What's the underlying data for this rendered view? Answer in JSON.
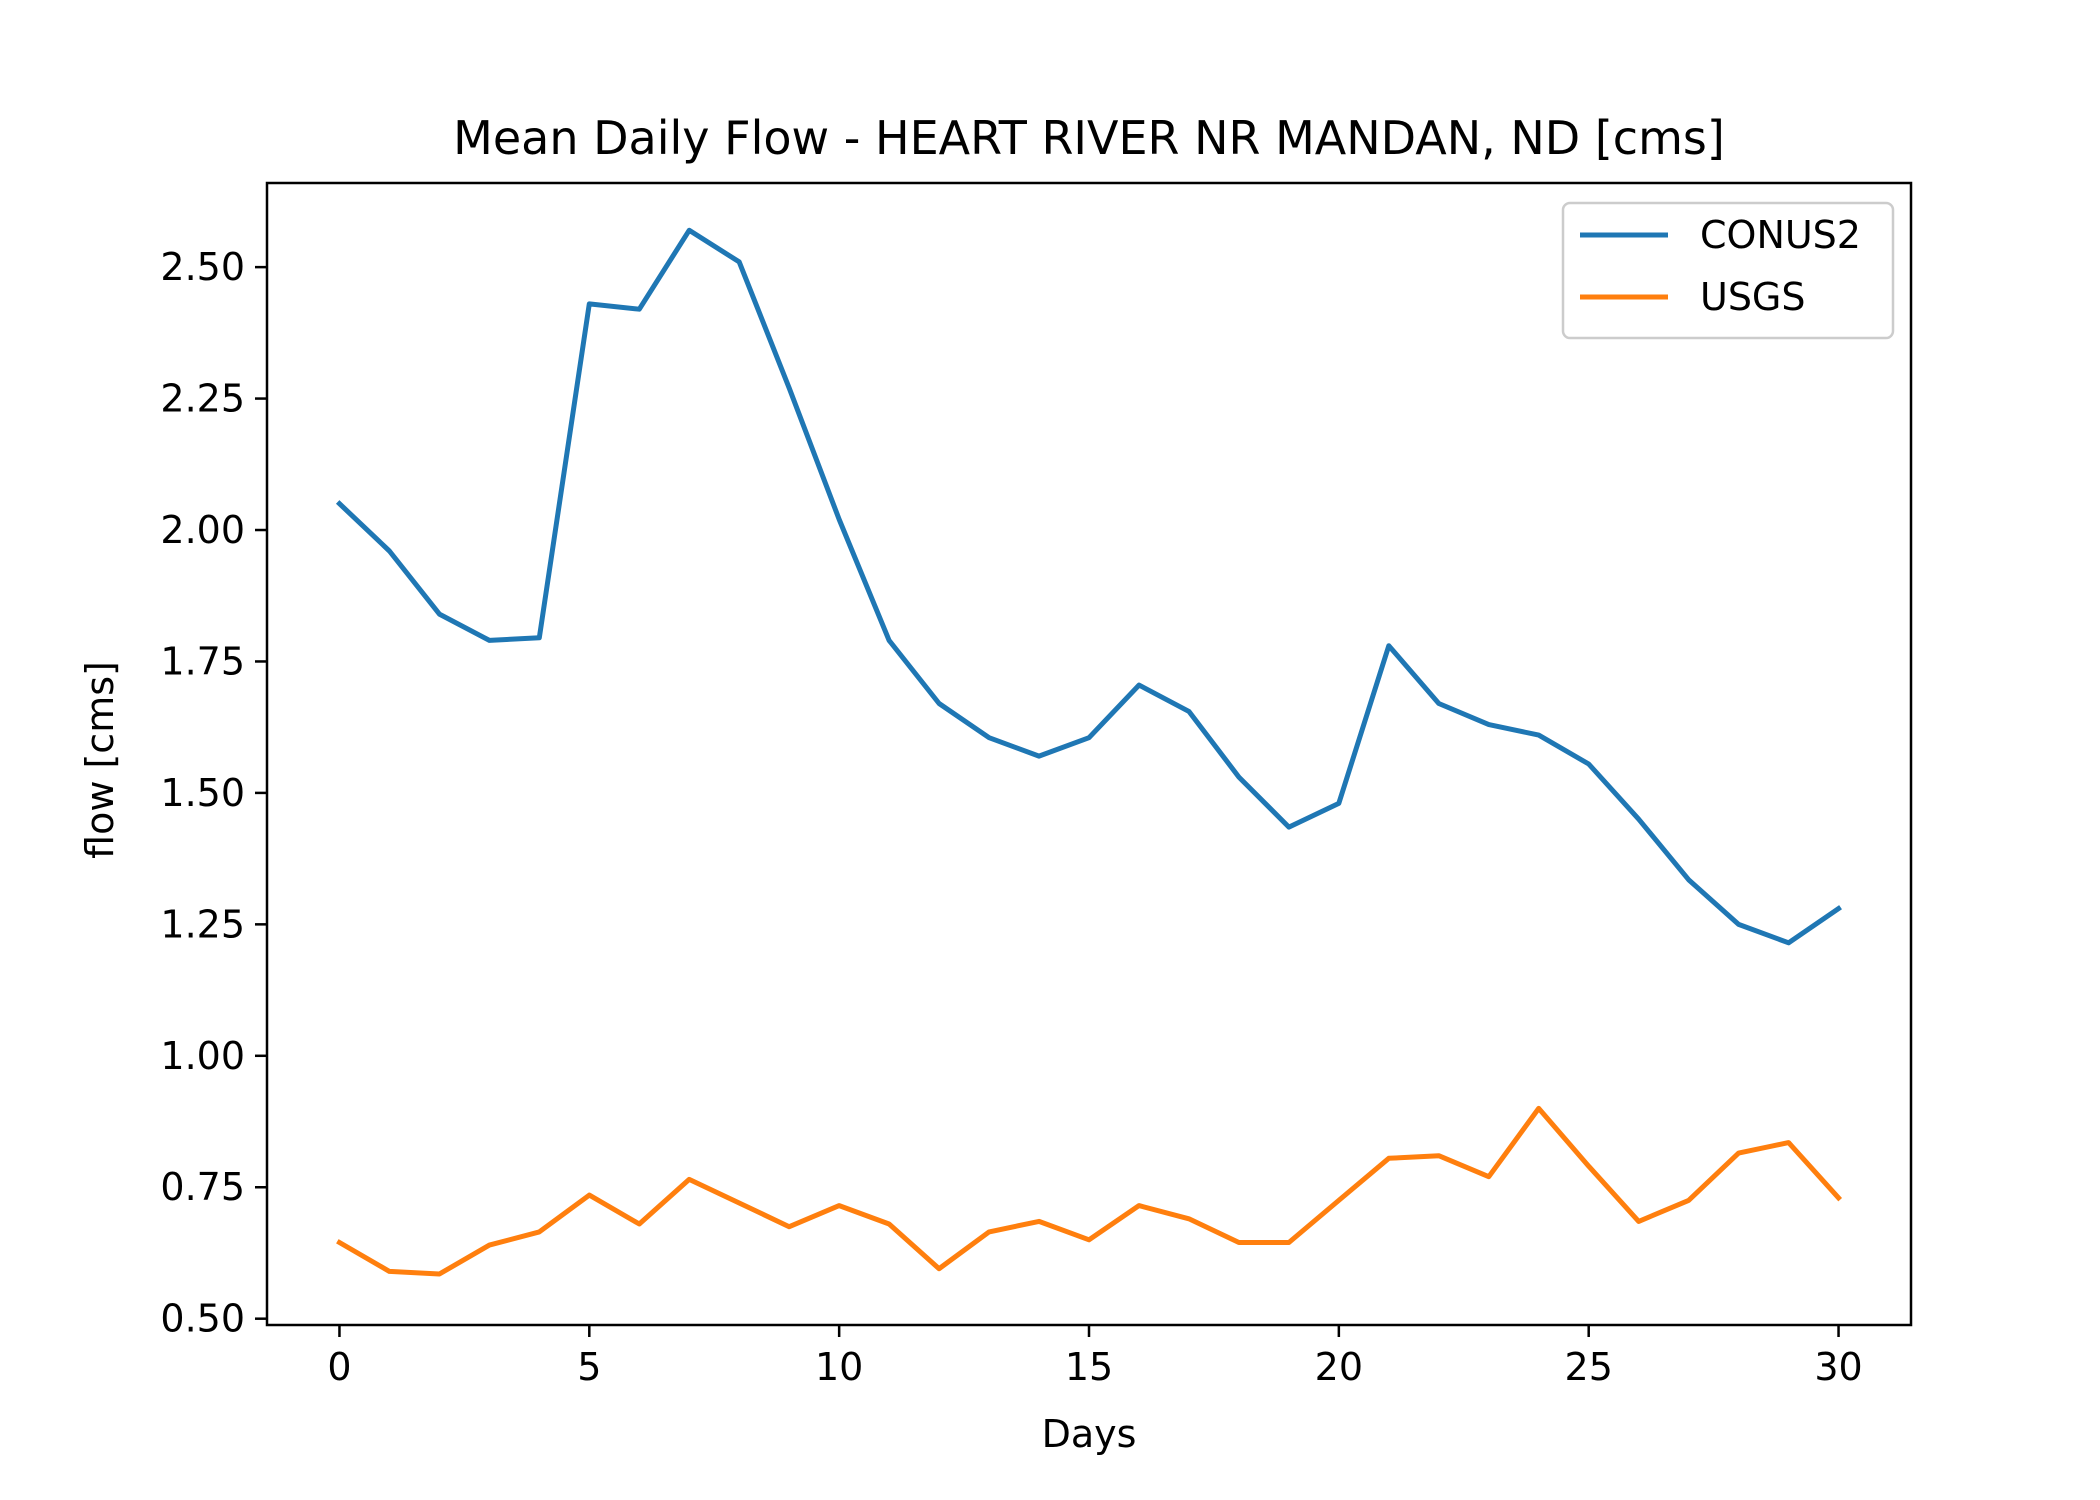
{
  "chart_data": {
    "type": "line",
    "title": "Mean Daily Flow - HEART RIVER NR MANDAN, ND [cms]",
    "xlabel": "Days",
    "ylabel": "flow [cms]",
    "xlim": [
      -1.45,
      31.45
    ],
    "ylim": [
      0.488,
      2.66
    ],
    "xticks": [
      0,
      5,
      10,
      15,
      20,
      25,
      30
    ],
    "yticks": [
      0.5,
      0.75,
      1.0,
      1.25,
      1.5,
      1.75,
      2.0,
      2.25,
      2.5
    ],
    "ytick_labels": [
      "0.50",
      "0.75",
      "1.00",
      "1.25",
      "1.50",
      "1.75",
      "2.00",
      "2.25",
      "2.50"
    ],
    "xtick_labels": [
      "0",
      "5",
      "10",
      "15",
      "20",
      "25",
      "30"
    ],
    "grid": false,
    "legend_position": "top-right",
    "x": [
      0,
      1,
      2,
      3,
      4,
      5,
      6,
      7,
      8,
      9,
      10,
      11,
      12,
      13,
      14,
      15,
      16,
      17,
      18,
      19,
      20,
      21,
      22,
      23,
      24,
      25,
      26,
      27,
      28,
      29,
      30
    ],
    "series": [
      {
        "name": "CONUS2",
        "color": "#1f77b4",
        "values": [
          2.05,
          1.96,
          1.84,
          1.79,
          1.795,
          2.43,
          2.42,
          2.57,
          2.51,
          2.27,
          2.02,
          1.79,
          1.67,
          1.605,
          1.57,
          1.605,
          1.705,
          1.655,
          1.53,
          1.435,
          1.48,
          1.78,
          1.67,
          1.63,
          1.61,
          1.555,
          1.45,
          1.335,
          1.25,
          1.215,
          1.28
        ]
      },
      {
        "name": "USGS",
        "color": "#ff7f0e",
        "values": [
          0.645,
          0.59,
          0.585,
          0.64,
          0.665,
          0.735,
          0.68,
          0.765,
          0.72,
          0.675,
          0.715,
          0.68,
          0.595,
          0.665,
          0.685,
          0.65,
          0.715,
          0.69,
          0.645,
          0.645,
          0.725,
          0.805,
          0.81,
          0.77,
          0.9,
          0.79,
          0.685,
          0.725,
          0.815,
          0.835,
          0.73
        ]
      }
    ]
  }
}
